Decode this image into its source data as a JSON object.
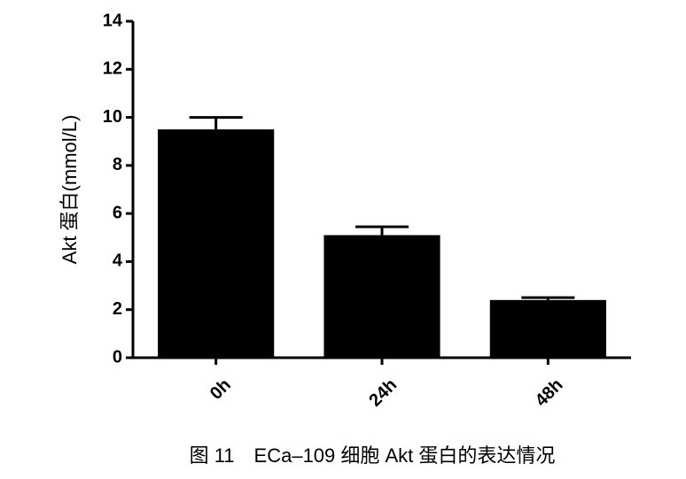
{
  "chart_data": {
    "type": "bar",
    "ylabel": "Akt 蛋白(mmol/L)",
    "caption": "图 11　ECa–109 细胞 Akt 蛋白的表达情况",
    "categories": [
      "0h",
      "24h",
      "48h"
    ],
    "values": [
      9.5,
      5.1,
      2.4
    ],
    "errors": [
      0.5,
      0.35,
      0.1
    ],
    "color": "#000000",
    "ylim": [
      0,
      14
    ],
    "yticks": [
      0,
      2,
      4,
      6,
      8,
      10,
      12,
      14
    ],
    "grid": false
  }
}
